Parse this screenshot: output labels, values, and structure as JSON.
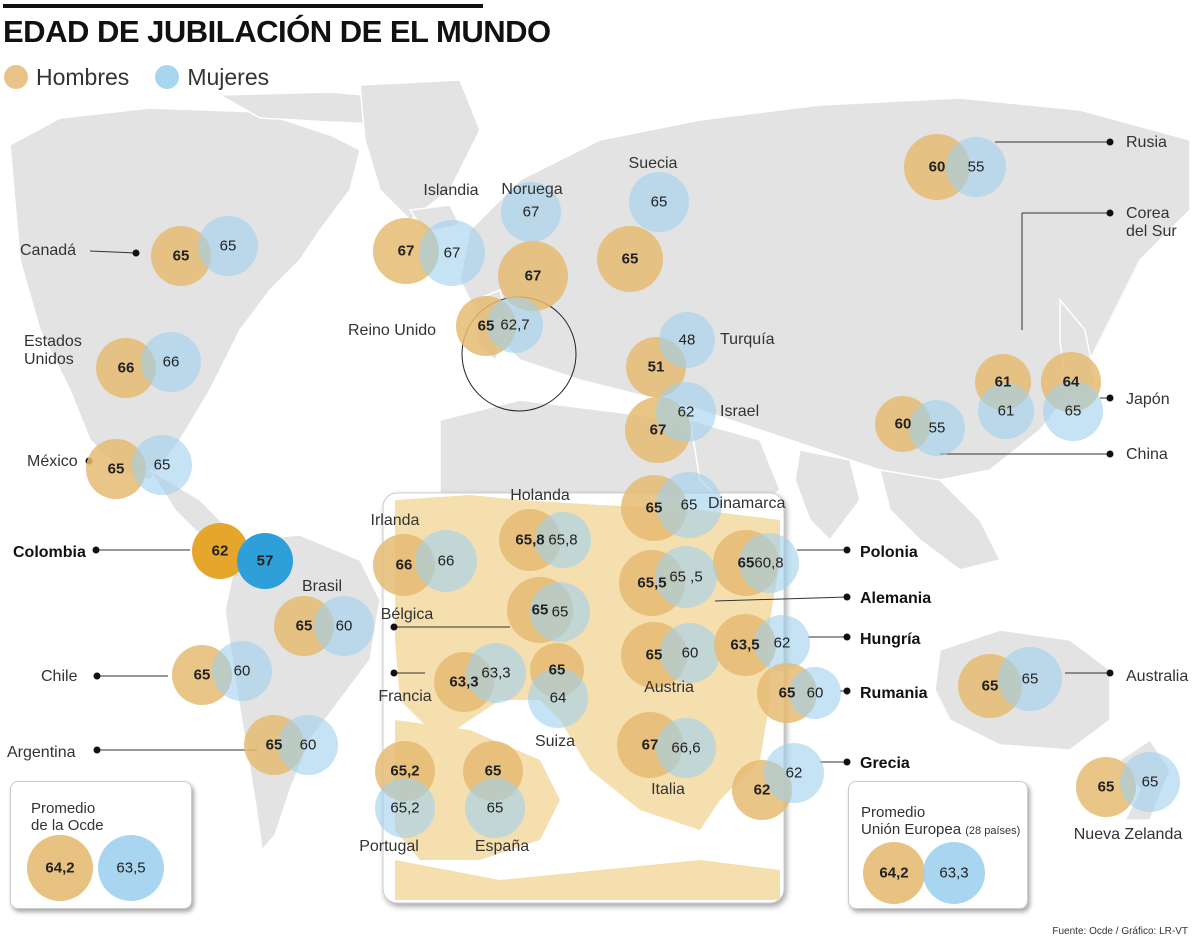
{
  "title": "EDAD DE JUBILACIÓN DE EL MUNDO",
  "legend": [
    {
      "label": "Hombres",
      "color": "#e8c488"
    },
    {
      "label": "Mujeres",
      "color": "#a9d6ef"
    }
  ],
  "colors": {
    "men": "#e5bb72",
    "women": "#9fd0ee",
    "colombia_men": "#e6a52b",
    "colombia_women": "#2e9fd8",
    "land": "#e3e3e3",
    "europe_highlight": "#f6dfae"
  },
  "source": "Fuente: Ocde / Gráfico: LR-VT",
  "countries": [
    {
      "name": "Canadá",
      "men": "65",
      "women": "65"
    },
    {
      "name": "Estados Unidos",
      "name_lines": [
        "Estados",
        "Unidos"
      ],
      "men": "66",
      "women": "66"
    },
    {
      "name": "México",
      "men": "65",
      "women": "65"
    },
    {
      "name": "Colombia",
      "men": "62",
      "women": "57",
      "highlight": true
    },
    {
      "name": "Brasil",
      "men": "65",
      "women": "60"
    },
    {
      "name": "Chile",
      "men": "65",
      "women": "60"
    },
    {
      "name": "Argentina",
      "men": "65",
      "women": "60"
    },
    {
      "name": "Islandia",
      "men": "67",
      "women": "67"
    },
    {
      "name": "Noruega",
      "men": "67",
      "women": "67"
    },
    {
      "name": "Suecia",
      "men": "65",
      "women": "65"
    },
    {
      "name": "Reino Unido",
      "men": "65",
      "women": "62,7"
    },
    {
      "name": "Turquía",
      "men": "51",
      "women": "48"
    },
    {
      "name": "Israel",
      "men": "67",
      "women": "62"
    },
    {
      "name": "Dinamarca",
      "men": "65",
      "women": "65"
    },
    {
      "name": "Irlanda",
      "men": "66",
      "women": "66"
    },
    {
      "name": "Holanda",
      "men": "65,8",
      "women": "65,8"
    },
    {
      "name": "Bélgica",
      "men": "65",
      "women": "65"
    },
    {
      "name": "Francia",
      "men": "63,3",
      "women": "63,3"
    },
    {
      "name": "Suiza",
      "men": "65",
      "women": "64"
    },
    {
      "name": "Portugal",
      "men": "65,2",
      "women": "65,2"
    },
    {
      "name": "España",
      "men": "65",
      "women": "65"
    },
    {
      "name": "Italia",
      "men": "67",
      "women": "66,6"
    },
    {
      "name": "Austria",
      "men": "65",
      "women": "60"
    },
    {
      "name": "Polonia",
      "men": "65",
      "women": "60,8"
    },
    {
      "name": "Alemania",
      "men": "65,5",
      "women": "65 ,5"
    },
    {
      "name": "Hungría",
      "men": "63,5",
      "women": "62"
    },
    {
      "name": "Rumania",
      "men": "65",
      "women": "60"
    },
    {
      "name": "Grecia",
      "men": "62",
      "women": "62"
    },
    {
      "name": "Rusia",
      "men": "60",
      "women": "55"
    },
    {
      "name": "Corea del Sur",
      "name_lines": [
        "Corea",
        "del Sur"
      ],
      "men": "61",
      "women": "61"
    },
    {
      "name": "Japón",
      "men": "64",
      "women": "65"
    },
    {
      "name": "China",
      "men": "60",
      "women": "55"
    },
    {
      "name": "Australia",
      "men": "65",
      "women": "65"
    },
    {
      "name": "Nueva Zelanda",
      "men": "65",
      "women": "65"
    }
  ],
  "averages": {
    "ocde": {
      "title_lines": [
        "Promedio",
        "de la Ocde"
      ],
      "men": "64,2",
      "women": "63,5"
    },
    "eu": {
      "title_lines": [
        "Promedio",
        "Unión Europea"
      ],
      "title_note": "(28 países)",
      "men": "64,2",
      "women": "63,3"
    }
  }
}
